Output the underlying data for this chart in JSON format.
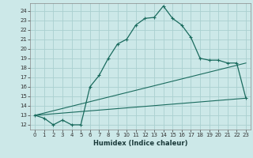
{
  "xlabel": "Humidex (Indice chaleur)",
  "bg_color": "#cce8e8",
  "grid_color": "#aad0d0",
  "line_color": "#1a6b5e",
  "line1_x": [
    0,
    1,
    2,
    3,
    4,
    5,
    6,
    7,
    8,
    9,
    10,
    11,
    12,
    13,
    14,
    15,
    16,
    17,
    18,
    19,
    20,
    21,
    22,
    23
  ],
  "line1_y": [
    13.0,
    12.7,
    12.0,
    12.5,
    12.0,
    12.0,
    16.0,
    17.2,
    19.0,
    20.5,
    21.0,
    22.5,
    23.2,
    23.3,
    24.5,
    23.2,
    22.5,
    21.2,
    19.0,
    18.8,
    18.8,
    18.5,
    18.5,
    14.8
  ],
  "line2_x": [
    0,
    23
  ],
  "line2_y": [
    13.0,
    18.5
  ],
  "line3_x": [
    0,
    23
  ],
  "line3_y": [
    13.0,
    14.8
  ],
  "xlim": [
    -0.5,
    23.5
  ],
  "ylim": [
    11.5,
    24.8
  ],
  "yticks": [
    12,
    13,
    14,
    15,
    16,
    17,
    18,
    19,
    20,
    21,
    22,
    23,
    24
  ],
  "xticks": [
    0,
    1,
    2,
    3,
    4,
    5,
    6,
    7,
    8,
    9,
    10,
    11,
    12,
    13,
    14,
    15,
    16,
    17,
    18,
    19,
    20,
    21,
    22,
    23
  ],
  "xlabel_fontsize": 6,
  "tick_fontsize": 5
}
